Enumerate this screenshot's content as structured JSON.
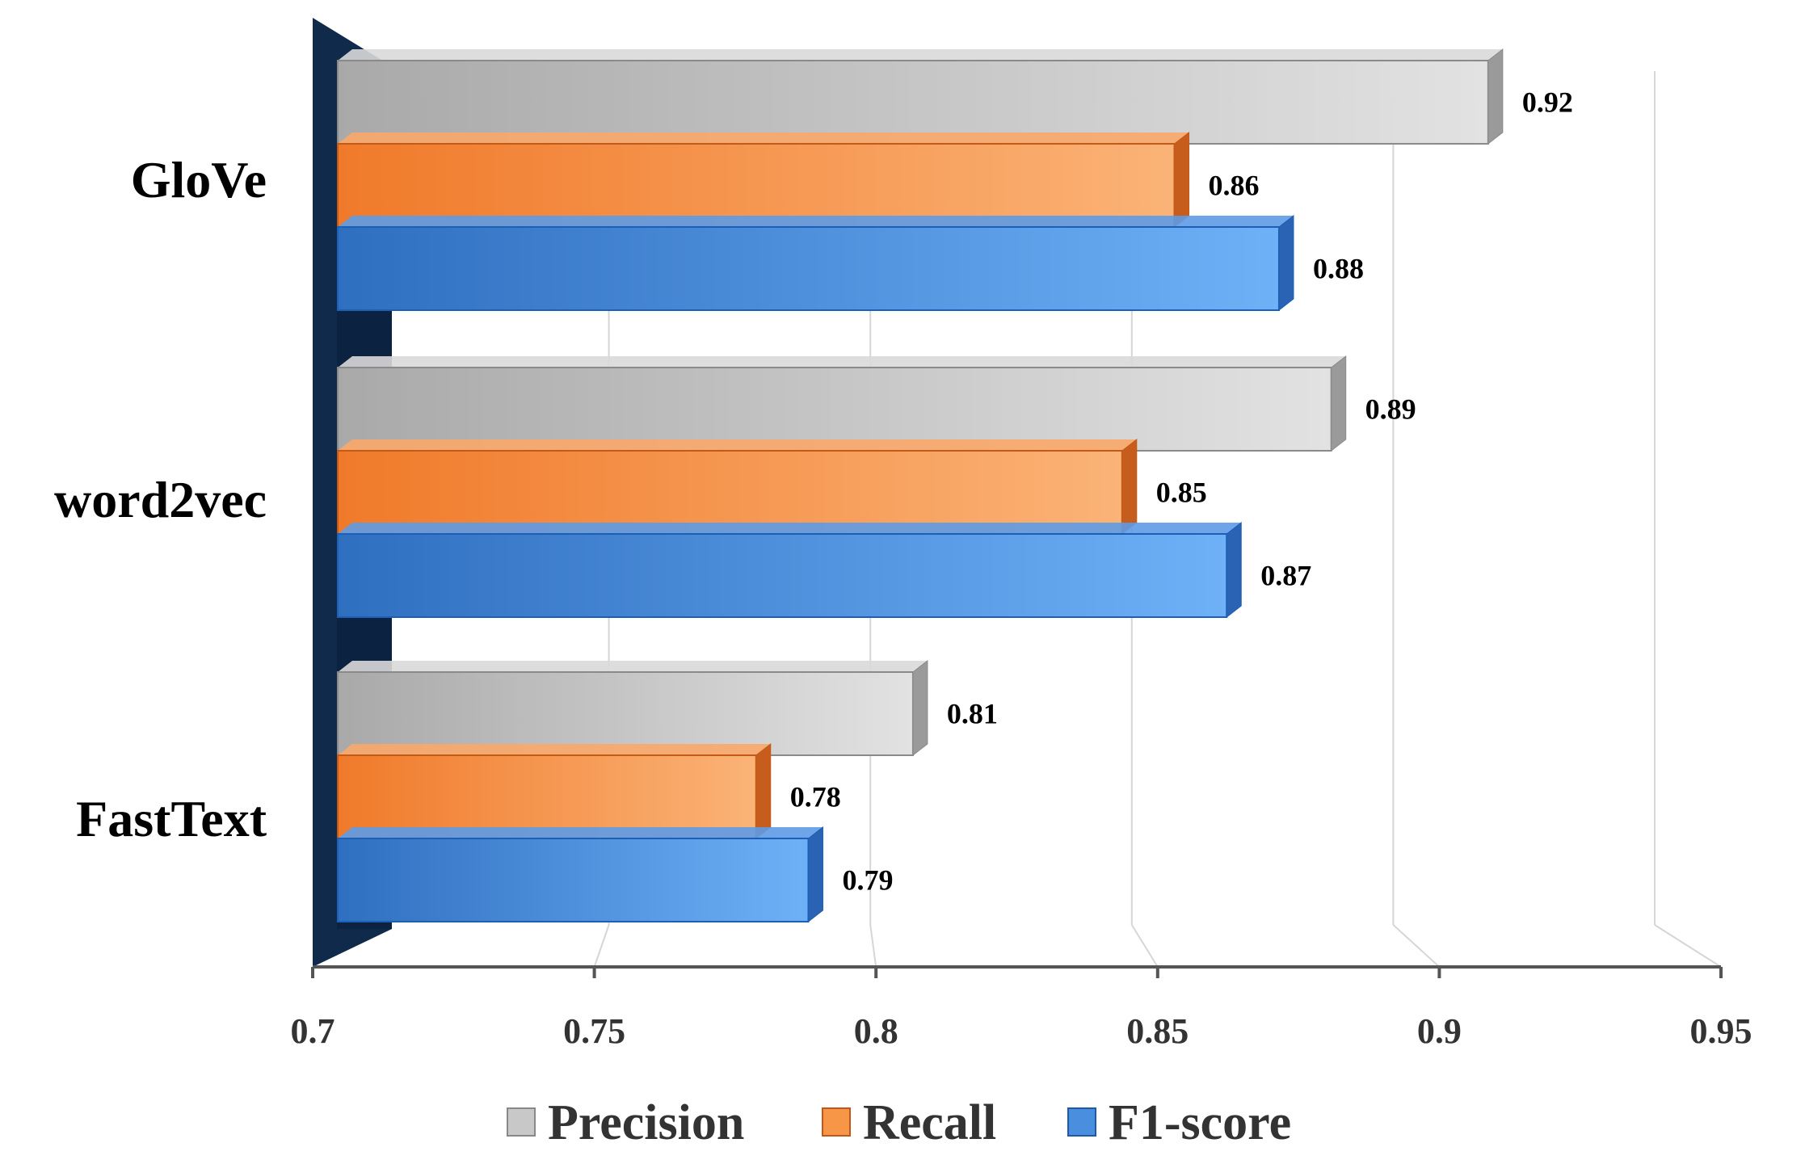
{
  "chart_data": {
    "type": "bar",
    "orientation": "horizontal",
    "style": "3d",
    "categories": [
      "GloVe",
      "word2vec",
      "FastText"
    ],
    "series": [
      {
        "name": "Precision",
        "values": [
          0.92,
          0.89,
          0.81
        ],
        "color": "#c8c8c8"
      },
      {
        "name": "Recall",
        "values": [
          0.86,
          0.85,
          0.78
        ],
        "color": "#f79646"
      },
      {
        "name": "F1-score",
        "values": [
          0.88,
          0.87,
          0.79
        ],
        "color": "#4a8fdf"
      }
    ],
    "data_labels": [
      [
        "0.92",
        "0.86",
        "0.88"
      ],
      [
        "0.89",
        "0.85",
        "0.87"
      ],
      [
        "0.81",
        "0.78",
        "0.79"
      ]
    ],
    "xlim": [
      0.7,
      0.95
    ],
    "x_ticks": [
      "0.7",
      "0.75",
      "0.8",
      "0.85",
      "0.9",
      "0.95"
    ],
    "x_tick_values": [
      0.7,
      0.75,
      0.8,
      0.85,
      0.9,
      0.95
    ],
    "legend_position": "bottom",
    "grid": true,
    "title": "",
    "xlabel": "",
    "ylabel": ""
  },
  "legend": {
    "items": [
      {
        "label": "Precision"
      },
      {
        "label": "Recall"
      },
      {
        "label": "F1-score"
      }
    ]
  }
}
